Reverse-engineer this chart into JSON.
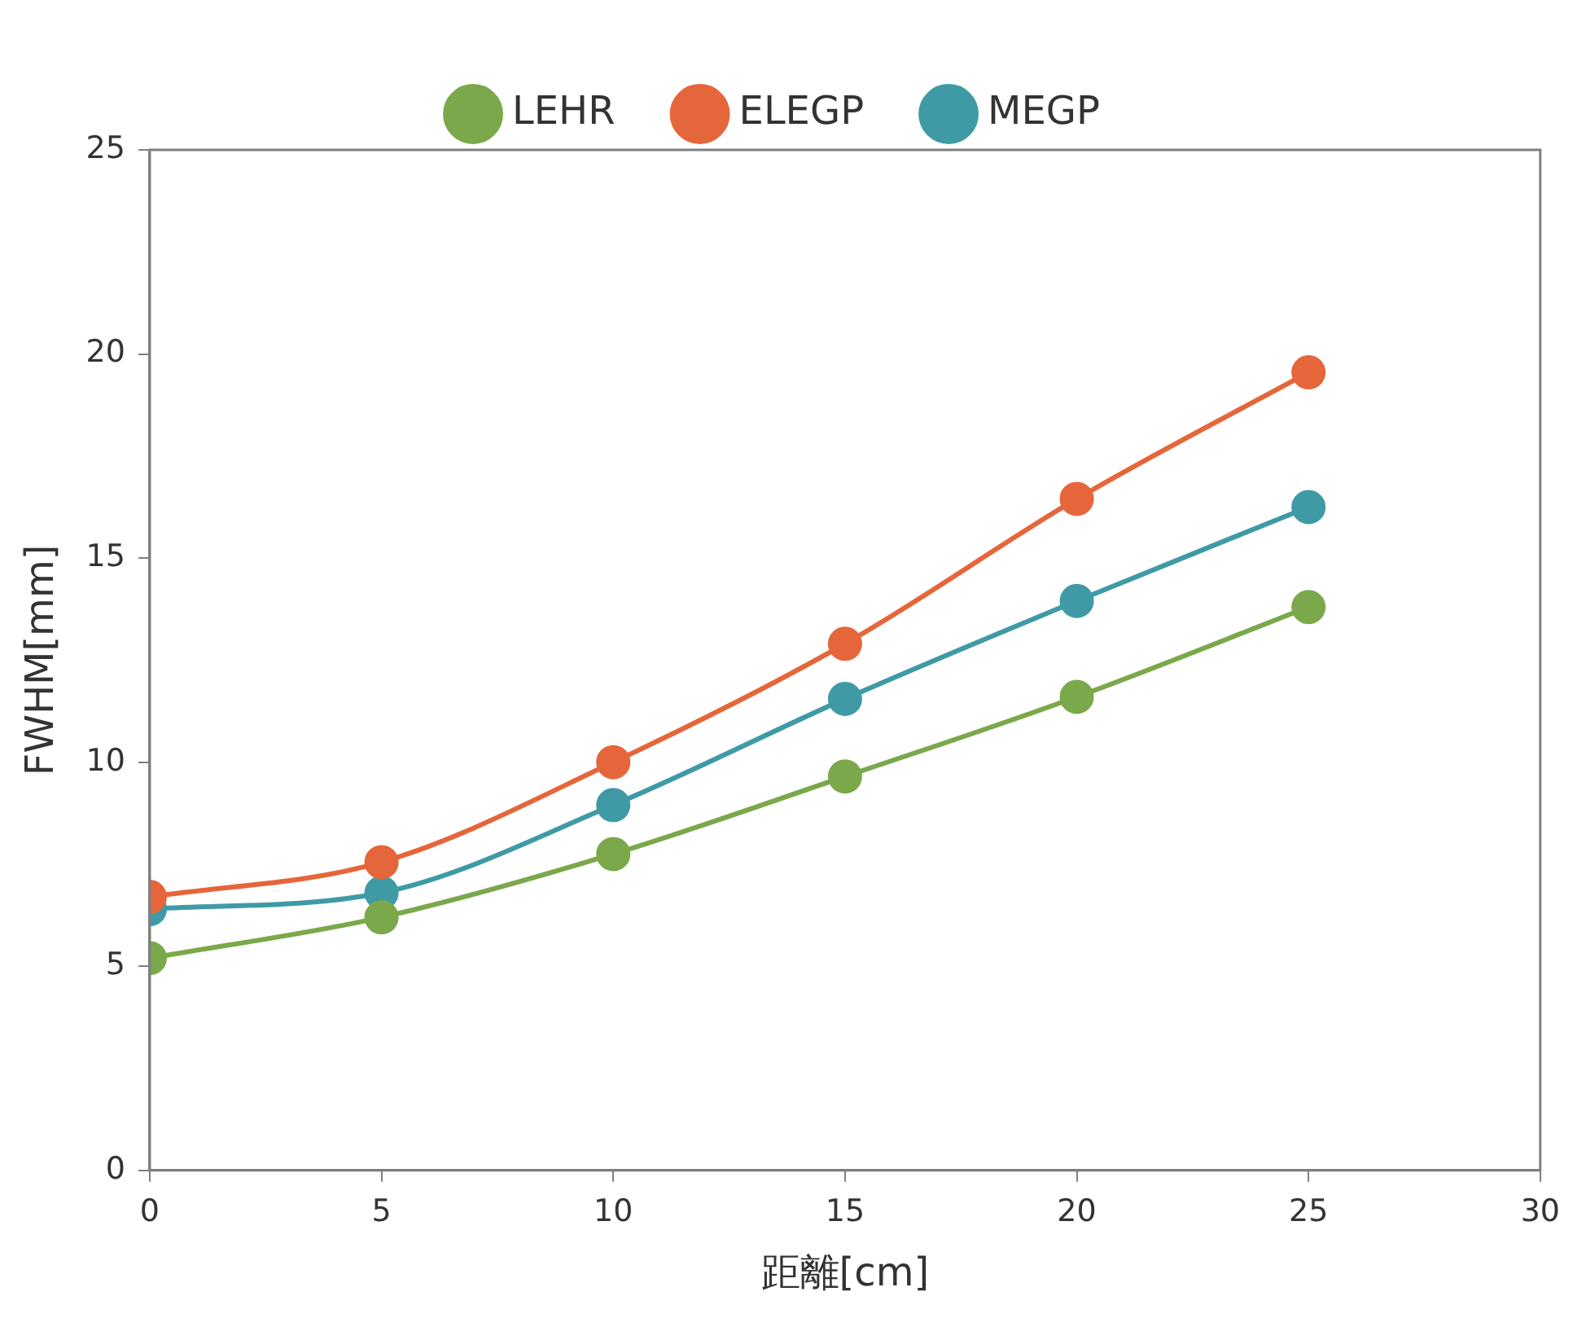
{
  "chart_data": {
    "type": "line",
    "xlabel": "距離[cm]",
    "ylabel": "FWHM[mm]",
    "x": [
      0,
      5,
      10,
      15,
      20,
      25
    ],
    "series": [
      {
        "name": "LEHR",
        "color": "#7aa84a",
        "values": [
          5.2,
          6.2,
          7.75,
          9.65,
          11.6,
          13.8
        ]
      },
      {
        "name": "ELEGP",
        "color": "#e5663a",
        "values": [
          6.7,
          7.55,
          10,
          12.9,
          16.45,
          19.55
        ]
      },
      {
        "name": "MEGP",
        "color": "#3f9aa6",
        "values": [
          6.4,
          6.8,
          8.95,
          11.55,
          13.95,
          16.25
        ]
      }
    ],
    "xlim": [
      0,
      30
    ],
    "xticks": [
      0,
      5,
      10,
      15,
      20,
      25,
      30
    ],
    "ylim": [
      0,
      25
    ],
    "yticks": [
      0,
      5,
      10,
      15,
      20,
      25
    ],
    "grid": false,
    "legend": "top",
    "marker": "circle",
    "line_style": "solid"
  }
}
